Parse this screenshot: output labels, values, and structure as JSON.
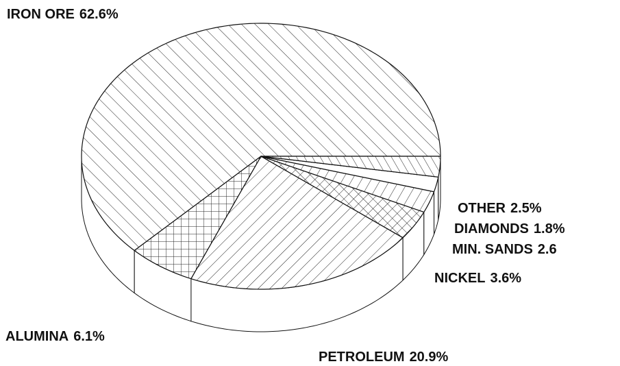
{
  "chart_data": {
    "type": "pie3d",
    "categories": [
      "IRON ORE",
      "ALUMINA",
      "PETROLEUM",
      "NICKEL",
      "MIN. SANDS",
      "DIAMONDS",
      "OTHER"
    ],
    "values": [
      62.6,
      6.1,
      20.9,
      3.6,
      2.6,
      1.8,
      2.5
    ],
    "value_labels": [
      "62.6%",
      "6.1%",
      "20.9%",
      "3.6%",
      "2.6",
      "1.8%",
      "2.5%"
    ]
  }
}
